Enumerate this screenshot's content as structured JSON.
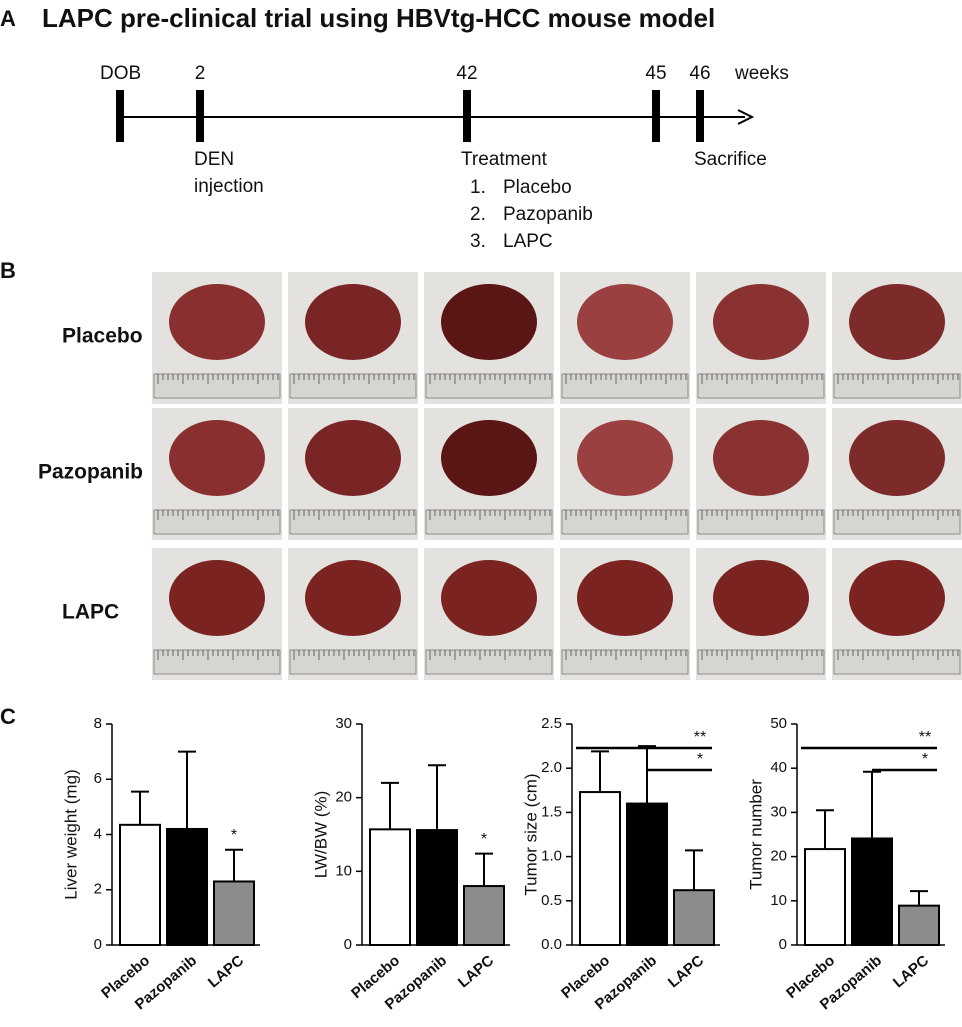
{
  "title": "LAPC pre-clinical trial using HBVtg-HCC mouse model",
  "panel_labels": {
    "a": "A",
    "b": "B",
    "c": "C"
  },
  "timeline": {
    "unit": "weeks",
    "points": [
      {
        "label": "DOB"
      },
      {
        "label": "2",
        "note": [
          "DEN",
          "injection"
        ]
      },
      {
        "label": "42",
        "note": [
          "Treatment"
        ],
        "list": [
          {
            "num": "1.",
            "text": "Placebo"
          },
          {
            "num": "2.",
            "text": "Pazopanib"
          },
          {
            "num": "3.",
            "text": "LAPC"
          }
        ]
      },
      {
        "label": "45"
      },
      {
        "label": "46",
        "note": [
          "Sacrifice"
        ]
      }
    ]
  },
  "photos": {
    "rows": [
      "Placebo",
      "Pazopanib",
      "LAPC"
    ]
  },
  "chart_data": [
    {
      "type": "bar",
      "ylabel": "Liver weight (mg)",
      "categories": [
        "Placebo",
        "Pazopanib",
        "LAPC"
      ],
      "values": [
        4.35,
        4.2,
        2.3
      ],
      "errors": [
        1.2,
        2.8,
        1.15
      ],
      "colors": [
        "#ffffff",
        "#000000",
        "#8c8c8c"
      ],
      "ylim": [
        0,
        8
      ],
      "yticks": [
        0,
        2,
        4,
        6,
        8
      ],
      "annotations": [
        {
          "category": "LAPC",
          "label": "*"
        }
      ]
    },
    {
      "type": "bar",
      "ylabel": "LW/BW (%)",
      "categories": [
        "Placebo",
        "Pazopanib",
        "LAPC"
      ],
      "values": [
        15.7,
        15.6,
        8.0
      ],
      "errors": [
        6.3,
        8.8,
        4.4
      ],
      "colors": [
        "#ffffff",
        "#000000",
        "#8c8c8c"
      ],
      "ylim": [
        0,
        30
      ],
      "yticks": [
        0,
        10,
        20,
        30
      ],
      "annotations": [
        {
          "category": "LAPC",
          "label": "*"
        }
      ]
    },
    {
      "type": "bar",
      "ylabel": "Tumor size (cm)",
      "categories": [
        "Placebo",
        "Pazopanib",
        "LAPC"
      ],
      "values": [
        1.73,
        1.6,
        0.62
      ],
      "errors": [
        0.46,
        0.65,
        0.45
      ],
      "colors": [
        "#ffffff",
        "#000000",
        "#8c8c8c"
      ],
      "ylim": [
        0,
        2.5
      ],
      "yticks": [
        {
          "value": 0,
          "label": "0.0"
        },
        0.5,
        {
          "value": 1,
          "label": "1.0"
        },
        1.5,
        {
          "value": 2,
          "label": "2.0"
        },
        2.5
      ],
      "brackets": [
        {
          "between": [
            "Placebo",
            "LAPC"
          ],
          "label": "**"
        },
        {
          "between": [
            "Pazopanib",
            "LAPC"
          ],
          "label": "*"
        }
      ]
    },
    {
      "type": "bar",
      "ylabel": "Tumor number",
      "categories": [
        "Placebo",
        "Pazopanib",
        "LAPC"
      ],
      "values": [
        21.7,
        24.1,
        8.9
      ],
      "errors": [
        8.8,
        15.1,
        3.3
      ],
      "colors": [
        "#ffffff",
        "#000000",
        "#8c8c8c"
      ],
      "ylim": [
        0,
        50
      ],
      "yticks": [
        0,
        10,
        20,
        30,
        40,
        50
      ],
      "brackets": [
        {
          "between": [
            "Placebo",
            "LAPC"
          ],
          "label": "**"
        },
        {
          "between": [
            "Pazopanib",
            "LAPC"
          ],
          "label": "*"
        }
      ]
    }
  ]
}
